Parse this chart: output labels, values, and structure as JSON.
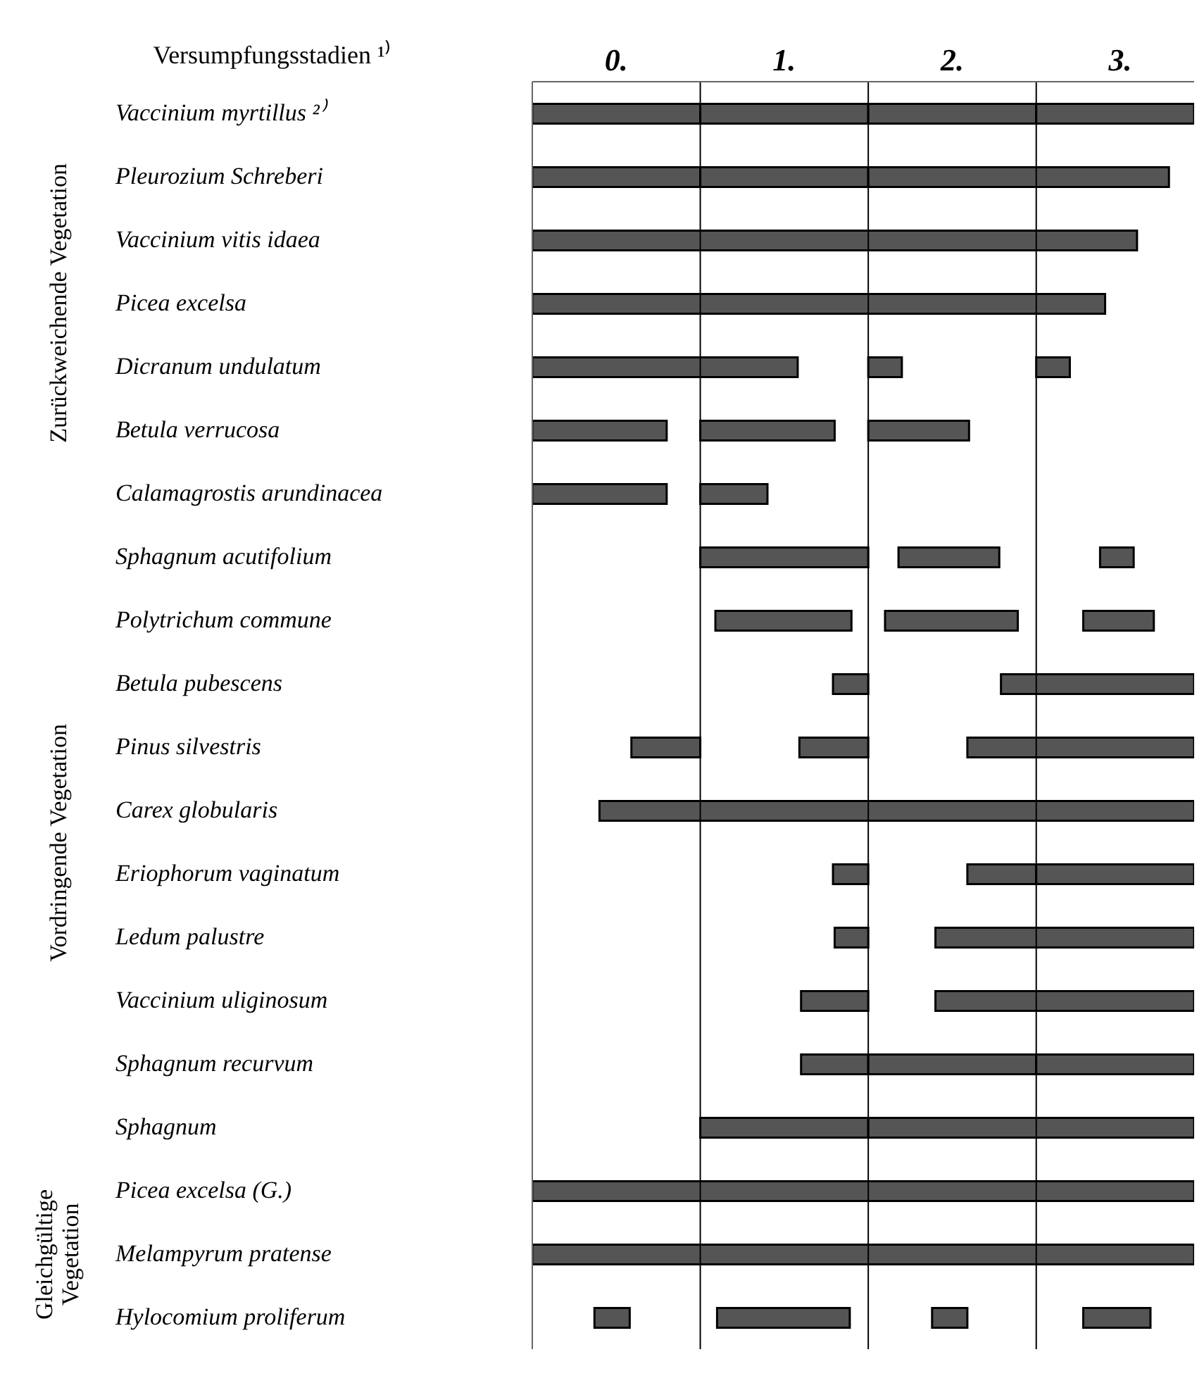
{
  "chart_data": {
    "type": "bar",
    "orientation": "horizontal",
    "title": "Versumpfungsstadien ¹⁾",
    "categories": [
      "Vaccinium myrtillus ²⁾",
      "Pleurozium Schreberi",
      "Vaccinium vitis idaea",
      "Picea excelsa",
      "Dicranum undulatum",
      "Betula verrucosa",
      "Calamagrostis arundinacea",
      "Sphagnum acutifolium",
      "Polytrichum commune",
      "Betula pubescens",
      "Pinus silvestris",
      "Carex globularis",
      "Eriophorum vaginatum",
      "Ledum palustre",
      "Vaccinium uliginosum",
      "Sphagnum recurvum",
      "Sphagnum",
      "Picea excelsa (G.)",
      "Melampyrum pratense",
      "Hylocomium proliferum"
    ],
    "series": [
      {
        "color": "#555555",
        "base": [
          0,
          0,
          0,
          0,
          0,
          0,
          0,
          1,
          1.09,
          1.79,
          0.59,
          0.4,
          1.79,
          1.8,
          1.6,
          1.6,
          1,
          0,
          0,
          0.37
        ],
        "values": [
          1,
          1,
          3.6,
          3.41,
          1.58,
          0.8,
          0.8,
          1,
          0.81,
          0.21,
          0.41,
          3.54,
          0.21,
          0.2,
          0.4,
          0.4,
          1,
          3.94,
          3.94,
          0.21
        ]
      },
      {
        "color": "#555555",
        "base": [
          1,
          1,
          null,
          null,
          2,
          1,
          1,
          2.18,
          2.1,
          2.79,
          1.59,
          null,
          2.59,
          2.4,
          2.4,
          2,
          2,
          null,
          null,
          1.1
        ],
        "values": [
          1,
          1,
          null,
          null,
          0.2,
          0.8,
          0.4,
          0.6,
          0.79,
          1.15,
          0.41,
          null,
          0.41,
          1.54,
          1.54,
          1,
          1.94,
          null,
          null,
          0.79
        ]
      },
      {
        "color": "#555555",
        "base": [
          2,
          2,
          null,
          null,
          3,
          2,
          null,
          3.38,
          3.28,
          null,
          2.59,
          null,
          3,
          null,
          null,
          3,
          null,
          null,
          null,
          2.38
        ],
        "values": [
          1,
          1.79,
          null,
          null,
          0.2,
          0.6,
          null,
          0.2,
          0.42,
          null,
          1.35,
          null,
          0.94,
          null,
          null,
          0.94,
          null,
          null,
          null,
          0.21
        ]
      },
      {
        "color": "#555555",
        "base": [
          3,
          null,
          null,
          null,
          null,
          null,
          null,
          null,
          null,
          null,
          null,
          null,
          null,
          null,
          null,
          null,
          null,
          null,
          null,
          3.28
        ],
        "values": [
          0.94,
          null,
          null,
          null,
          null,
          null,
          null,
          null,
          null,
          null,
          null,
          null,
          null,
          null,
          null,
          null,
          null,
          null,
          null,
          0.4
        ]
      }
    ],
    "xlim": [
      0,
      3.94
    ],
    "xticks": [
      {
        "value": 0.5,
        "label": "0."
      },
      {
        "value": 1.5,
        "label": "1."
      },
      {
        "value": 2.5,
        "label": "2."
      },
      {
        "value": 3.5,
        "label": "3."
      }
    ],
    "ref_lines": [
      {
        "axis": "x",
        "value": 1,
        "color": "#000000"
      },
      {
        "axis": "x",
        "value": 2,
        "color": "#000000"
      },
      {
        "axis": "x",
        "value": 3,
        "color": "#000000"
      }
    ],
    "annotations": [
      "Zurückweichende Vegetation",
      "Vordringende Vegetation",
      "Gleichgültige Vegetation"
    ]
  }
}
